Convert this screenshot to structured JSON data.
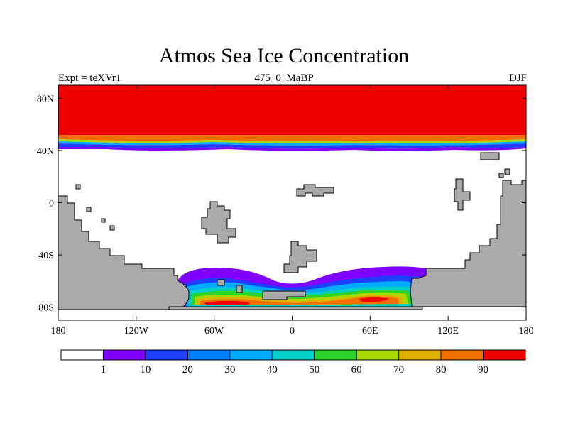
{
  "title": "Atmos Sea Ice Concentration",
  "subtitle_left": "Expt = teXVr1",
  "subtitle_center": "475_0_MaBP",
  "subtitle_right": "DJF",
  "x_ticks": [
    "180",
    "120W",
    "60W",
    "0",
    "60E",
    "120E",
    "180"
  ],
  "y_ticks": [
    "80N",
    "40N",
    "0",
    "40S",
    "80S"
  ],
  "colorbar": {
    "colors": [
      "#ffffff",
      "#7f00ff",
      "#1f3fff",
      "#0080ff",
      "#00aaff",
      "#00d0c8",
      "#2cd42c",
      "#a8d800",
      "#e0b000",
      "#f07000",
      "#f00000"
    ],
    "labels": [
      "1",
      "10",
      "20",
      "30",
      "40",
      "50",
      "60",
      "70",
      "80",
      "90"
    ]
  },
  "land_color": "#aaaaaa",
  "ocean_color": "#ffffff"
}
